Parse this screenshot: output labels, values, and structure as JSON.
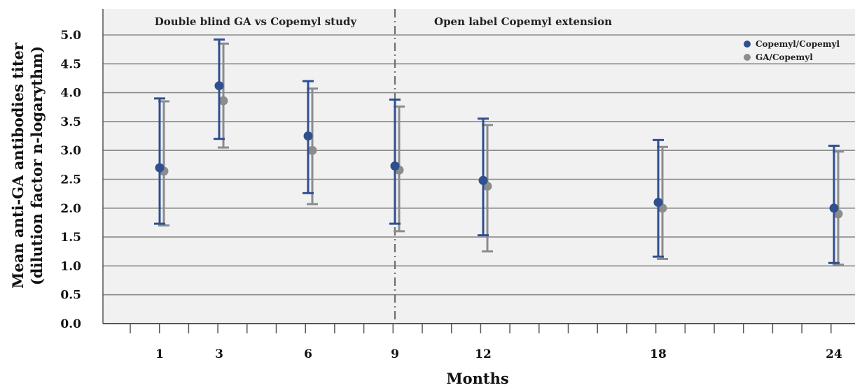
{
  "chart_data": {
    "type": "scatter",
    "ylabel": "Mean anti-GA antibodies titer",
    "ylabel2": "(dilution factor n-logarythm)",
    "xlabel": "Months",
    "ylim": [
      0,
      5.0
    ],
    "y_ticks": [
      "0.0",
      "0.5",
      "1.0",
      "1.5",
      "2.0",
      "2.5",
      "3.0",
      "3.5",
      "4.0",
      "4.5",
      "5.0"
    ],
    "x_ticks": [
      "1",
      "3",
      "6",
      "9",
      "12",
      "18",
      "24"
    ],
    "grid": true,
    "legend_position": "top-right",
    "sections": [
      {
        "label": "Double blind GA vs Copemyl study"
      },
      {
        "label": "Open label Copemyl extension"
      }
    ],
    "divider_month": "9",
    "series": [
      {
        "name": "Copemyl/Copemyl",
        "color": "#2f4f8f",
        "points": [
          {
            "x": "1",
            "y": 2.7,
            "low": 1.73,
            "high": 3.9
          },
          {
            "x": "3",
            "y": 4.12,
            "low": 3.2,
            "high": 4.92
          },
          {
            "x": "6",
            "y": 3.25,
            "low": 2.26,
            "high": 4.2
          },
          {
            "x": "9",
            "y": 2.73,
            "low": 1.73,
            "high": 3.88
          },
          {
            "x": "12",
            "y": 2.48,
            "low": 1.53,
            "high": 3.55
          },
          {
            "x": "18",
            "y": 2.1,
            "low": 1.16,
            "high": 3.18
          },
          {
            "x": "24",
            "y": 2.0,
            "low": 1.05,
            "high": 3.08
          }
        ]
      },
      {
        "name": "GA/Copemyl",
        "color": "#8c8c8c",
        "points": [
          {
            "x": "1",
            "y": 2.64,
            "low": 1.7,
            "high": 3.85
          },
          {
            "x": "3",
            "y": 3.86,
            "low": 3.05,
            "high": 4.85
          },
          {
            "x": "6",
            "y": 3.0,
            "low": 2.07,
            "high": 4.07
          },
          {
            "x": "9",
            "y": 2.66,
            "low": 1.6,
            "high": 3.76
          },
          {
            "x": "12",
            "y": 2.38,
            "low": 1.25,
            "high": 3.44
          },
          {
            "x": "18",
            "y": 2.0,
            "low": 1.12,
            "high": 3.06
          },
          {
            "x": "24",
            "y": 1.9,
            "low": 1.02,
            "high": 2.98
          }
        ]
      }
    ]
  }
}
